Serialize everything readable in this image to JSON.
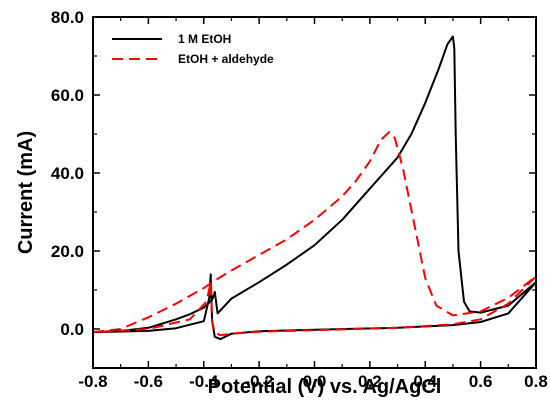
{
  "chart_data": {
    "type": "line",
    "title": "",
    "xlabel": "Potential (V) vs. Ag/AgCl",
    "ylabel": "Current (mA)",
    "xlim": [
      -0.8,
      0.8
    ],
    "ylim": [
      -10,
      80
    ],
    "x_ticks": [
      -0.8,
      -0.6,
      -0.4,
      -0.2,
      0.0,
      0.2,
      0.4,
      0.6,
      0.8
    ],
    "x_tick_labels": [
      "-0.8",
      "-0.6",
      "-0.4",
      "-0.2",
      "0.0",
      "0.2",
      "0.4",
      "0.6",
      "0.8"
    ],
    "y_ticks": [
      0,
      20,
      40,
      60,
      80
    ],
    "y_tick_labels": [
      "0.0",
      "20.0",
      "40.0",
      "60.0",
      "80.0"
    ],
    "grid": false,
    "legend_position": "top-left",
    "series": [
      {
        "name": "1 M EtOH",
        "color": "#000000",
        "dash": "solid",
        "points": [
          [
            -0.8,
            -0.8
          ],
          [
            -0.7,
            -0.5
          ],
          [
            -0.6,
            0.3
          ],
          [
            -0.5,
            2.5
          ],
          [
            -0.45,
            3.8
          ],
          [
            -0.4,
            5.5
          ],
          [
            -0.37,
            7.5
          ],
          [
            -0.36,
            9.5
          ],
          [
            -0.35,
            4.0
          ],
          [
            -0.3,
            7.8
          ],
          [
            -0.2,
            12.0
          ],
          [
            -0.1,
            16.5
          ],
          [
            0.0,
            21.5
          ],
          [
            0.1,
            28.0
          ],
          [
            0.2,
            36.0
          ],
          [
            0.3,
            44.0
          ],
          [
            0.35,
            50.0
          ],
          [
            0.4,
            58.0
          ],
          [
            0.45,
            67.0
          ],
          [
            0.48,
            73.0
          ],
          [
            0.5,
            75.0
          ],
          [
            0.505,
            72.0
          ],
          [
            0.51,
            50.0
          ],
          [
            0.52,
            20.0
          ],
          [
            0.54,
            7.0
          ],
          [
            0.56,
            4.5
          ],
          [
            0.6,
            4.2
          ],
          [
            0.7,
            6.0
          ],
          [
            0.8,
            12.0
          ],
          [
            0.7,
            4.0
          ],
          [
            0.6,
            1.8
          ],
          [
            0.5,
            1.0
          ],
          [
            0.3,
            0.3
          ],
          [
            0.0,
            -0.2
          ],
          [
            -0.2,
            -0.6
          ],
          [
            -0.3,
            -1.2
          ],
          [
            -0.34,
            -2.6
          ],
          [
            -0.36,
            -2.0
          ],
          [
            -0.37,
            2.0
          ],
          [
            -0.375,
            14.0
          ],
          [
            -0.38,
            8.0
          ],
          [
            -0.4,
            2.0
          ],
          [
            -0.5,
            0.2
          ],
          [
            -0.6,
            -0.5
          ],
          [
            -0.8,
            -0.8
          ]
        ]
      },
      {
        "name": "EtOH + aldehyde",
        "color": "#ff0000",
        "dash": "dashed",
        "points": [
          [
            -0.8,
            -0.8
          ],
          [
            -0.7,
            0.0
          ],
          [
            -0.6,
            3.0
          ],
          [
            -0.5,
            6.5
          ],
          [
            -0.4,
            10.5
          ],
          [
            -0.37,
            12.0
          ],
          [
            -0.3,
            15.0
          ],
          [
            -0.2,
            19.0
          ],
          [
            -0.1,
            23.0
          ],
          [
            0.0,
            28.0
          ],
          [
            0.1,
            34.0
          ],
          [
            0.15,
            38.0
          ],
          [
            0.2,
            43.0
          ],
          [
            0.24,
            48.5
          ],
          [
            0.27,
            50.5
          ],
          [
            0.29,
            49.0
          ],
          [
            0.32,
            41.0
          ],
          [
            0.36,
            27.0
          ],
          [
            0.4,
            13.0
          ],
          [
            0.44,
            6.0
          ],
          [
            0.5,
            3.5
          ],
          [
            0.6,
            4.5
          ],
          [
            0.7,
            8.0
          ],
          [
            0.8,
            13.5
          ],
          [
            0.7,
            6.5
          ],
          [
            0.6,
            2.5
          ],
          [
            0.5,
            1.2
          ],
          [
            0.3,
            0.3
          ],
          [
            0.0,
            -0.3
          ],
          [
            -0.2,
            -0.7
          ],
          [
            -0.3,
            -1.2
          ],
          [
            -0.34,
            -1.6
          ],
          [
            -0.36,
            -1.0
          ],
          [
            -0.37,
            2.0
          ],
          [
            -0.375,
            12.0
          ],
          [
            -0.39,
            7.0
          ],
          [
            -0.45,
            2.5
          ],
          [
            -0.6,
            0.0
          ],
          [
            -0.8,
            -0.8
          ]
        ]
      }
    ]
  }
}
